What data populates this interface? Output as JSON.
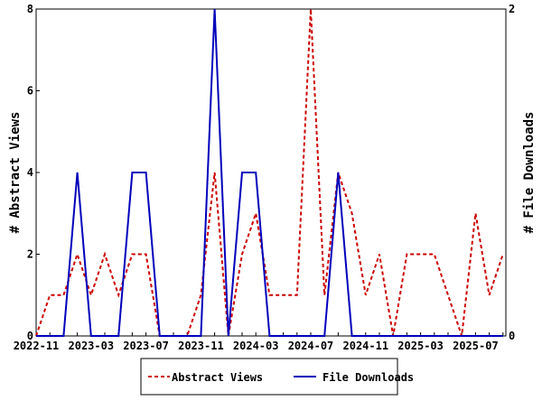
{
  "chart_data": {
    "type": "line",
    "x": [
      "2022-11",
      "2022-12",
      "2023-01",
      "2023-02",
      "2023-03",
      "2023-04",
      "2023-05",
      "2023-06",
      "2023-07",
      "2023-08",
      "2023-09",
      "2023-10",
      "2023-11",
      "2023-12",
      "2024-01",
      "2024-02",
      "2024-03",
      "2024-04",
      "2024-05",
      "2024-06",
      "2024-07",
      "2024-08",
      "2024-09",
      "2024-10",
      "2024-11",
      "2024-12",
      "2025-01",
      "2025-02",
      "2025-03",
      "2025-04",
      "2025-05",
      "2025-06",
      "2025-07",
      "2025-08",
      "2025-09"
    ],
    "xticks": [
      "2022-11",
      "2023-03",
      "2023-07",
      "2023-11",
      "2024-03",
      "2024-07",
      "2024-11",
      "2025-03",
      "2025-07"
    ],
    "series": [
      {
        "name": "Abstract Views",
        "axis": "left",
        "color": "#cc0000",
        "dash": true,
        "values": [
          0,
          1,
          1,
          2,
          1,
          2,
          1,
          2,
          2,
          0,
          0,
          0,
          1,
          4,
          0,
          2,
          3,
          1,
          1,
          1,
          8,
          1,
          4,
          3,
          1,
          2,
          0,
          2,
          2,
          2,
          1,
          0,
          3,
          1,
          2
        ]
      },
      {
        "name": "File Downloads",
        "axis": "right",
        "color": "#0000bb",
        "dash": false,
        "values": [
          0,
          0,
          0,
          1,
          0,
          0,
          0,
          1,
          1,
          0,
          0,
          0,
          0,
          2,
          0,
          1,
          1,
          0,
          0,
          0,
          0,
          0,
          1,
          0,
          0,
          0,
          0,
          0,
          0,
          0,
          0,
          0,
          0,
          0,
          0
        ]
      }
    ],
    "ylabel": "# Abstract Views",
    "y2label": "# File Downloads",
    "ylim": [
      0,
      8
    ],
    "y2lim": [
      0,
      2
    ],
    "yticks": [
      "0",
      "2",
      "4",
      "6",
      "8"
    ],
    "y2ticks": [
      "0",
      "2"
    ],
    "legend_position": "bottom"
  }
}
